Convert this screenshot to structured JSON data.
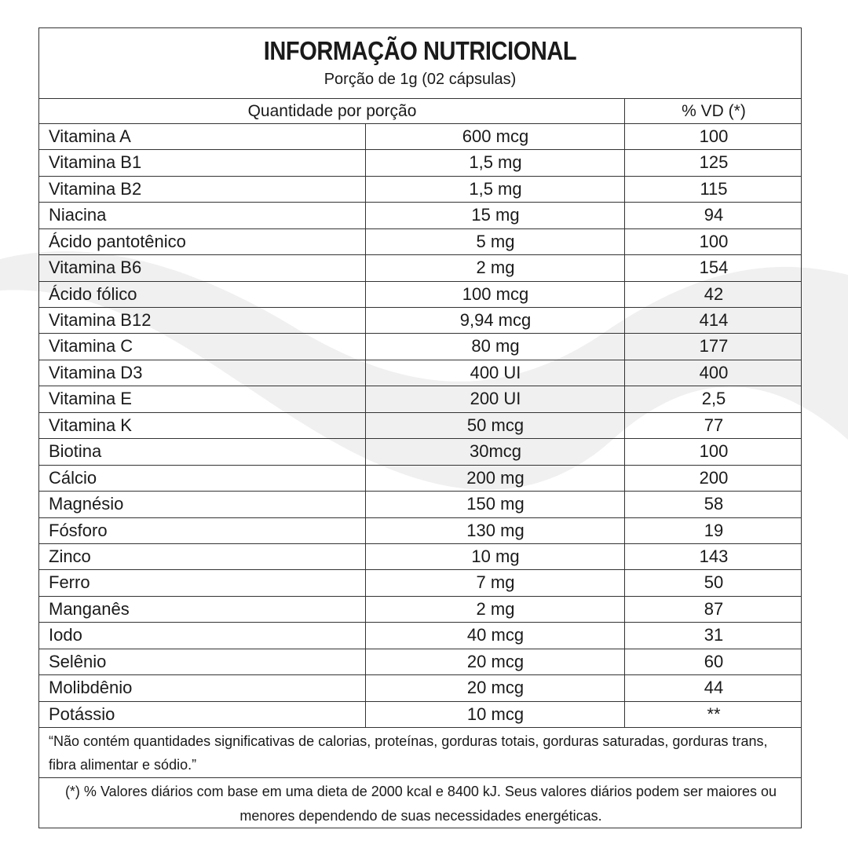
{
  "header": {
    "title": "INFORMAÇÃO NUTRICIONAL",
    "subtitle": "Porção de 1g (02 cápsulas)"
  },
  "table": {
    "columns": [
      "Quantidade por porção",
      "% VD (*)"
    ],
    "rows": [
      [
        "Vitamina A",
        "600 mcg",
        "100"
      ],
      [
        "Vitamina B1",
        "1,5 mg",
        "125"
      ],
      [
        "Vitamina B2",
        "1,5 mg",
        "115"
      ],
      [
        "Niacina",
        "15 mg",
        "94"
      ],
      [
        "Ácido pantotênico",
        "5 mg",
        "100"
      ],
      [
        "Vitamina B6",
        "2 mg",
        "154"
      ],
      [
        "Ácido fólico",
        "100 mcg",
        "42"
      ],
      [
        "Vitamina B12",
        "9,94 mcg",
        "414"
      ],
      [
        "Vitamina C",
        "80 mg",
        "177"
      ],
      [
        "Vitamina D3",
        "400 UI",
        "400"
      ],
      [
        "Vitamina E",
        "200 UI",
        "2,5"
      ],
      [
        "Vitamina K",
        "50 mcg",
        "77"
      ],
      [
        "Biotina",
        "30mcg",
        "100"
      ],
      [
        "Cálcio",
        "200 mg",
        "200"
      ],
      [
        "Magnésio",
        "150 mg",
        "58"
      ],
      [
        "Fósforo",
        "130 mg",
        "19"
      ],
      [
        "Zinco",
        "10 mg",
        "143"
      ],
      [
        "Ferro",
        "7 mg",
        "50"
      ],
      [
        "Manganês",
        "2 mg",
        "87"
      ],
      [
        "Iodo",
        "40 mcg",
        "31"
      ],
      [
        "Selênio",
        "20 mcg",
        "60"
      ],
      [
        "Molibdênio",
        "20 mcg",
        "44"
      ],
      [
        "Potássio",
        "10 mcg",
        "**"
      ]
    ]
  },
  "footnotes": [
    "“Não contém quantidades significativas de calorias, proteínas, gorduras totais, gorduras saturadas, gorduras trans, fibra alimentar e sódio.”",
    "(*) % Valores diários com base em uma dieta de 2000 kcal e 8400 kJ. Seus valores diários podem ser maiores ou menores dependendo de suas necessidades energéticas."
  ]
}
